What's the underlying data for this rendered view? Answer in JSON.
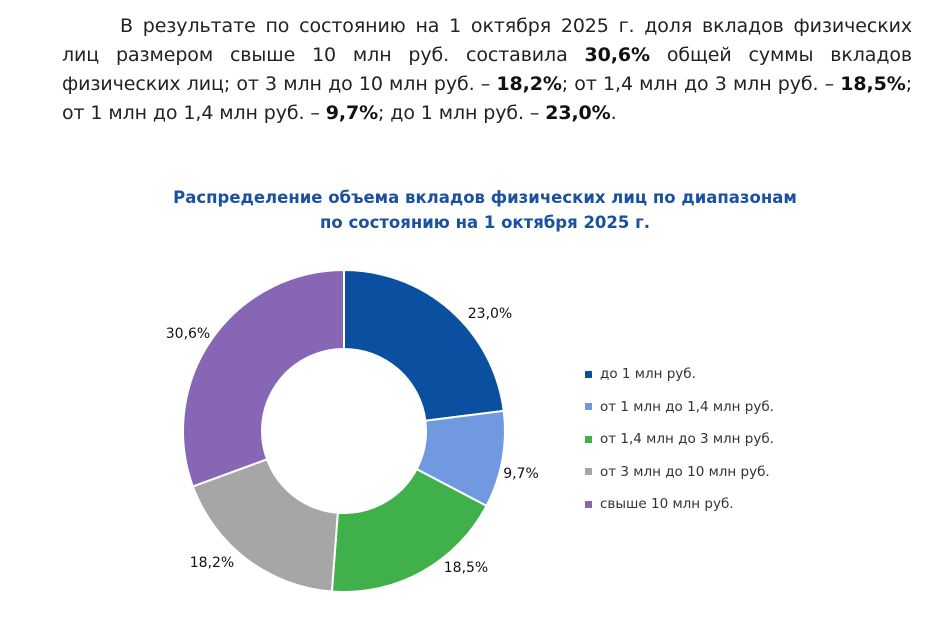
{
  "paragraph": {
    "part1": "В результате по состоянию на 1 октября 2025 г. доля вкладов физических лиц размером свыше 10 млн руб. составила ",
    "value1": "30,6%",
    "part2": " общей суммы вкладов физических лиц; от 3 млн до 10 млн руб. – ",
    "value2": "18,2%",
    "part3": "; от 1,4 млн до 3 млн руб. – ",
    "value3": "18,5%",
    "part4": "; от 1 млн до 1,4 млн руб. – ",
    "value4": "9,7%",
    "part5": "; до 1 млн руб. – ",
    "value5": "23,0%",
    "part6": "."
  },
  "chart_data": {
    "type": "pie",
    "donut": true,
    "title": "Распределение объема вкладов физических лиц по диапазонам",
    "subtitle": "по состоянию на 1 октября 2025 г.",
    "legend_position": "right",
    "categories": [
      "до 1 млн руб.",
      "от 1 млн до 1,4 млн руб.",
      "от 1,4 млн до 3 млн руб.",
      "от 3 млн до 10 млн руб.",
      "свыше 10 млн руб."
    ],
    "values": [
      23.0,
      9.7,
      18.5,
      18.2,
      30.6
    ],
    "data_labels": [
      "23,0%",
      "9,7%",
      "18,5%",
      "18,2%",
      "30,6%"
    ],
    "colors": [
      "#0a4fa0",
      "#7099e0",
      "#3fb04a",
      "#a6a6a6",
      "#8767b5"
    ]
  }
}
